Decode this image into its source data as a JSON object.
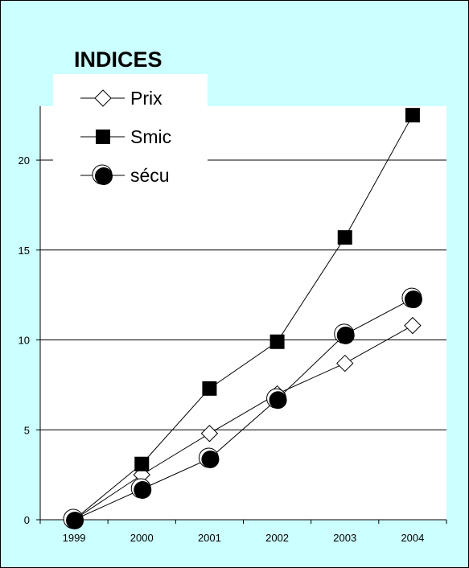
{
  "chart_data": {
    "type": "line",
    "title": "INDICES",
    "xlabel": "",
    "ylabel": "",
    "x": [
      "1999",
      "2000",
      "2001",
      "2002",
      "2003",
      "2004"
    ],
    "ylim": [
      0,
      23
    ],
    "yticks": [
      0,
      5,
      10,
      15,
      20
    ],
    "grid": true,
    "legend_position": "top-left",
    "background_color": "#ccffff",
    "series": [
      {
        "name": "Prix",
        "marker": "open-diamond",
        "values": [
          0.0,
          2.5,
          4.8,
          7.0,
          8.7,
          10.8
        ]
      },
      {
        "name": "Smic",
        "marker": "filled-square",
        "values": [
          0.0,
          3.1,
          7.3,
          9.9,
          15.7,
          22.5
        ]
      },
      {
        "name": "sécu",
        "marker": "filled-circle",
        "values": [
          0.0,
          1.7,
          3.4,
          6.7,
          10.3,
          12.3
        ]
      }
    ]
  }
}
